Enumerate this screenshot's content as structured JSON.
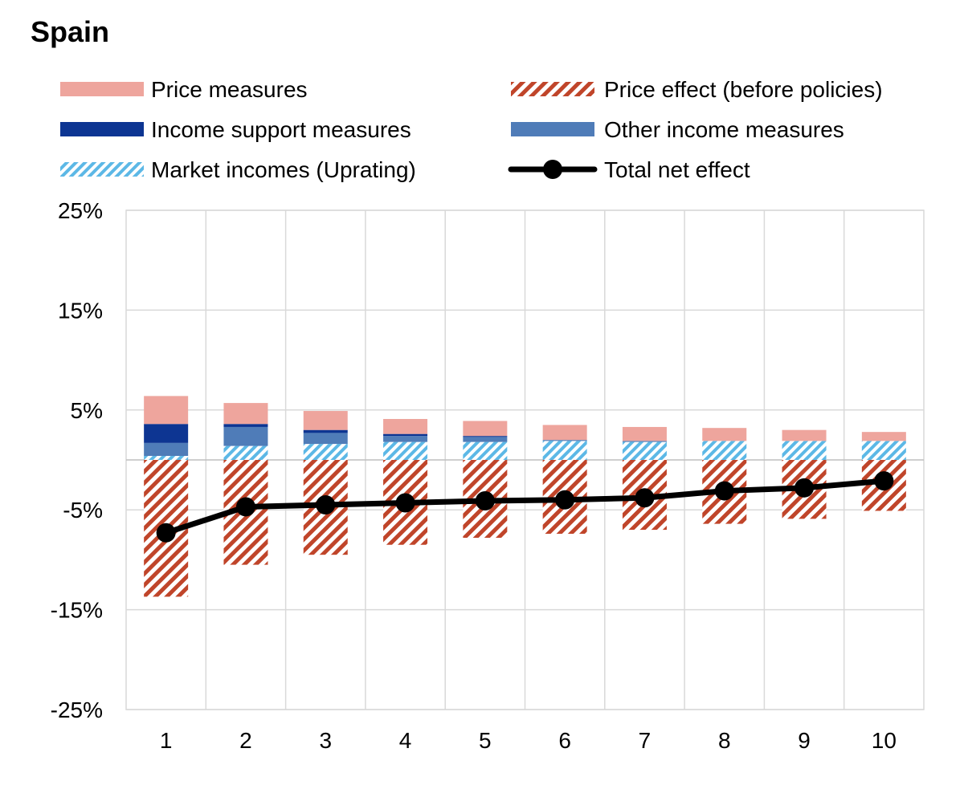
{
  "chart_data": {
    "type": "bar",
    "title": "Spain",
    "xlabel": "",
    "ylabel": "",
    "categories": [
      "1",
      "2",
      "3",
      "4",
      "5",
      "6",
      "7",
      "8",
      "9",
      "10"
    ],
    "ylim": [
      -25,
      25
    ],
    "yticks": [
      25,
      15,
      5,
      -5,
      -15,
      -25
    ],
    "ytick_labels": [
      "25%",
      "15%",
      "5%",
      "-5%",
      "-15%",
      "-25%"
    ],
    "grid": true,
    "legend_position": "top",
    "series": [
      {
        "name": "Market incomes (Uprating)",
        "kind": "bar",
        "pattern": "hatch",
        "color": "#5cb8e6",
        "values": [
          0.4,
          1.4,
          1.6,
          1.8,
          1.8,
          1.9,
          1.8,
          1.9,
          1.9,
          1.9
        ]
      },
      {
        "name": "Other income measures",
        "kind": "bar",
        "pattern": "solid",
        "color": "#4f7cb8",
        "values": [
          1.3,
          1.9,
          1.1,
          0.6,
          0.5,
          0.1,
          0.1,
          0.0,
          0.0,
          0.0
        ]
      },
      {
        "name": "Income support measures",
        "kind": "bar",
        "pattern": "solid",
        "color": "#0d3592",
        "values": [
          1.9,
          0.3,
          0.3,
          0.2,
          0.1,
          0.0,
          0.0,
          0.0,
          0.0,
          0.0
        ]
      },
      {
        "name": "Price measures",
        "kind": "bar",
        "pattern": "solid",
        "color": "#eea59d",
        "values": [
          2.8,
          2.1,
          1.9,
          1.5,
          1.5,
          1.5,
          1.4,
          1.3,
          1.1,
          0.9
        ]
      },
      {
        "name": "Price effect (before policies)",
        "kind": "bar",
        "pattern": "hatch",
        "color": "#c0452a",
        "values": [
          -13.7,
          -10.5,
          -9.5,
          -8.5,
          -7.8,
          -7.4,
          -7.0,
          -6.4,
          -5.9,
          -5.1
        ]
      },
      {
        "name": "Total net effect",
        "kind": "line",
        "color": "#000000",
        "values": [
          -7.3,
          -4.7,
          -4.5,
          -4.3,
          -4.1,
          -4.0,
          -3.8,
          -3.1,
          -2.8,
          -2.1
        ]
      }
    ],
    "legend": [
      {
        "label": "Price measures",
        "series": 3
      },
      {
        "label": "Price effect (before policies)",
        "series": 4
      },
      {
        "label": "Income support measures",
        "series": 2
      },
      {
        "label": "Other income measures",
        "series": 1
      },
      {
        "label": "Market incomes (Uprating)",
        "series": 0
      },
      {
        "label": "Total net effect",
        "series": 5
      }
    ]
  }
}
